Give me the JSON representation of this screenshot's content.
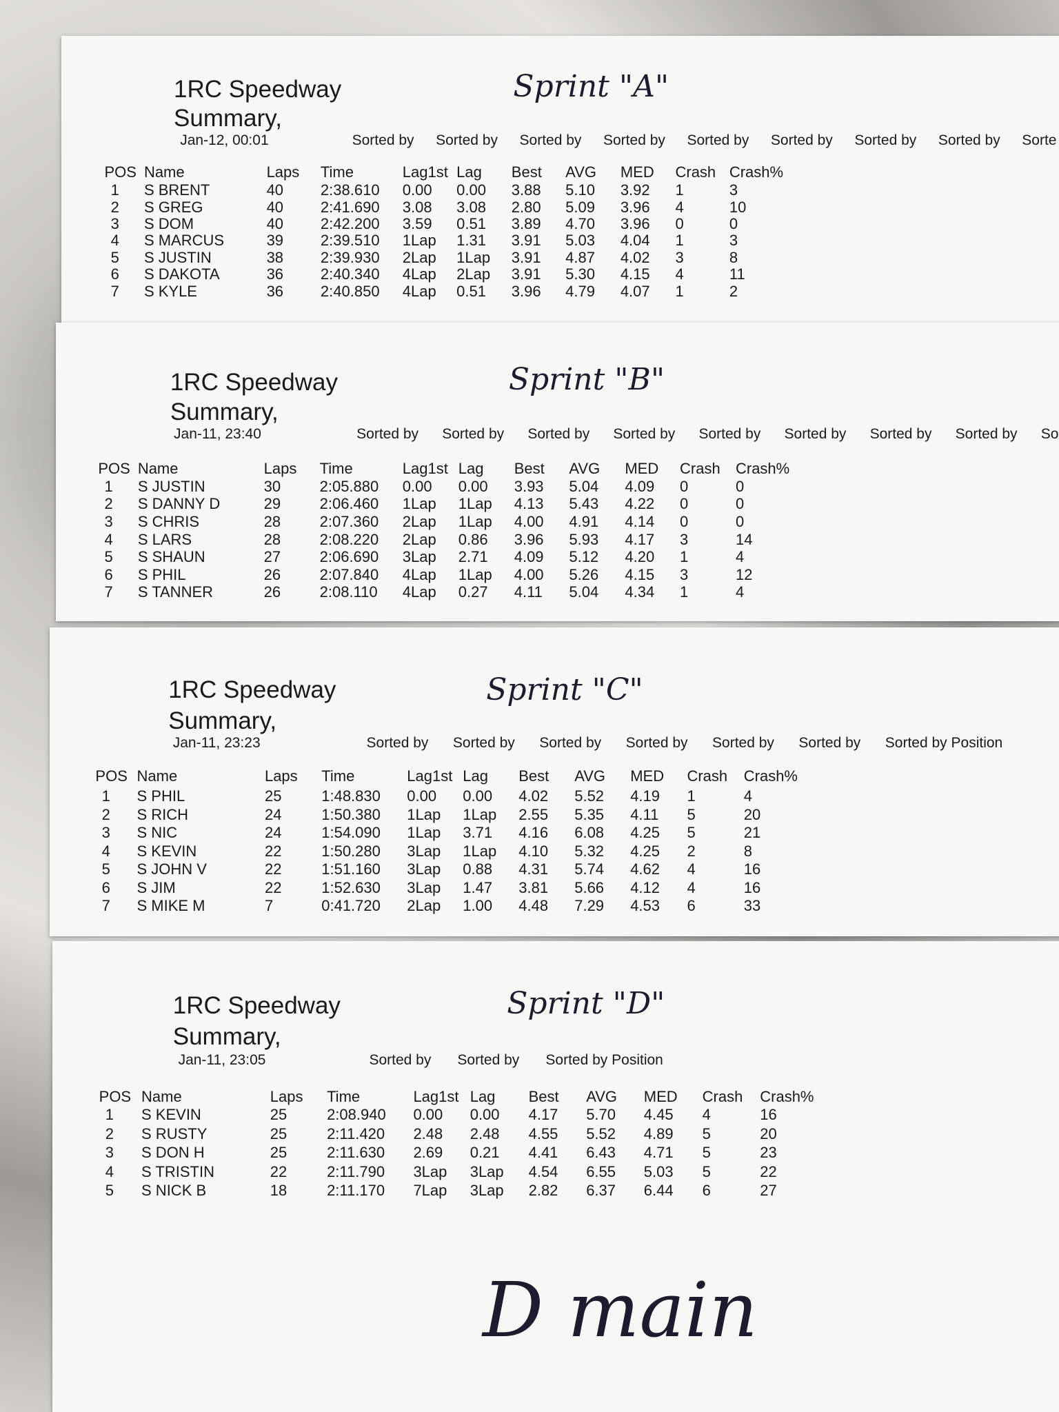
{
  "sheets": [
    {
      "title": "1RC Speedway",
      "subtitle": "Summary,",
      "date": "Jan-12, 00:01",
      "note": "Sprint \"A\"",
      "sorted": [
        "Sorted by",
        "Sorted by",
        "Sorted by",
        "Sorted by",
        "Sorted by",
        "Sorted by",
        "Sorted by",
        "Sorted by",
        "Sorte"
      ],
      "columns": [
        "POS",
        "Name",
        "Laps",
        "Time",
        "Lag1st",
        "Lag",
        "Best",
        "AVG",
        "MED",
        "Crash",
        "Crash%"
      ],
      "rows": [
        [
          "1",
          "S BRENT",
          "40",
          "2:38.610",
          "0.00",
          "0.00",
          "3.88",
          "5.10",
          "3.92",
          "1",
          "3"
        ],
        [
          "2",
          "S GREG",
          "40",
          "2:41.690",
          "3.08",
          "3.08",
          "2.80",
          "5.09",
          "3.96",
          "4",
          "10"
        ],
        [
          "3",
          "S DOM",
          "40",
          "2:42.200",
          "3.59",
          "0.51",
          "3.89",
          "4.70",
          "3.96",
          "0",
          "0"
        ],
        [
          "4",
          "S MARCUS",
          "39",
          "2:39.510",
          "1Lap",
          "1.31",
          "3.91",
          "5.03",
          "4.04",
          "1",
          "3"
        ],
        [
          "5",
          "S JUSTIN",
          "38",
          "2:39.930",
          "2Lap",
          "1Lap",
          "3.91",
          "4.87",
          "4.02",
          "3",
          "8"
        ],
        [
          "6",
          "S DAKOTA",
          "36",
          "2:40.340",
          "4Lap",
          "2Lap",
          "3.91",
          "5.30",
          "4.15",
          "4",
          "11"
        ],
        [
          "7",
          "S KYLE",
          "36",
          "2:40.850",
          "4Lap",
          "0.51",
          "3.96",
          "4.79",
          "4.07",
          "1",
          "2"
        ]
      ]
    },
    {
      "title": "1RC Speedway",
      "subtitle": "Summary,",
      "date": "Jan-11, 23:40",
      "note": "Sprint \"B\"",
      "sorted": [
        "Sorted by",
        "Sorted by",
        "Sorted by",
        "Sorted by",
        "Sorted by",
        "Sorted by",
        "Sorted by",
        "Sorted by",
        "Sor"
      ],
      "columns": [
        "POS",
        "Name",
        "Laps",
        "Time",
        "Lag1st",
        "Lag",
        "Best",
        "AVG",
        "MED",
        "Crash",
        "Crash%"
      ],
      "rows": [
        [
          "1",
          "S JUSTIN",
          "30",
          "2:05.880",
          "0.00",
          "0.00",
          "3.93",
          "5.04",
          "4.09",
          "0",
          "0"
        ],
        [
          "2",
          "S DANNY D",
          "29",
          "2:06.460",
          "1Lap",
          "1Lap",
          "4.13",
          "5.43",
          "4.22",
          "0",
          "0"
        ],
        [
          "3",
          "S CHRIS",
          "28",
          "2:07.360",
          "2Lap",
          "1Lap",
          "4.00",
          "4.91",
          "4.14",
          "0",
          "0"
        ],
        [
          "4",
          "S LARS",
          "28",
          "2:08.220",
          "2Lap",
          "0.86",
          "3.96",
          "5.93",
          "4.17",
          "3",
          "14"
        ],
        [
          "5",
          "S SHAUN",
          "27",
          "2:06.690",
          "3Lap",
          "2.71",
          "4.09",
          "5.12",
          "4.20",
          "1",
          "4"
        ],
        [
          "6",
          "S PHIL",
          "26",
          "2:07.840",
          "4Lap",
          "1Lap",
          "4.00",
          "5.26",
          "4.15",
          "3",
          "12"
        ],
        [
          "7",
          "S TANNER",
          "26",
          "2:08.110",
          "4Lap",
          "0.27",
          "4.11",
          "5.04",
          "4.34",
          "1",
          "4"
        ]
      ]
    },
    {
      "title": "1RC Speedway",
      "subtitle": "Summary,",
      "date": "Jan-11, 23:23",
      "note": "Sprint \"C\"",
      "sorted": [
        "Sorted by",
        "Sorted by",
        "Sorted by",
        "Sorted by",
        "Sorted by",
        "Sorted by",
        "Sorted by Position"
      ],
      "columns": [
        "POS",
        "Name",
        "Laps",
        "Time",
        "Lag1st",
        "Lag",
        "Best",
        "AVG",
        "MED",
        "Crash",
        "Crash%"
      ],
      "rows": [
        [
          "1",
          "S PHIL",
          "25",
          "1:48.830",
          "0.00",
          "0.00",
          "4.02",
          "5.52",
          "4.19",
          "1",
          "4"
        ],
        [
          "2",
          "S RICH",
          "24",
          "1:50.380",
          "1Lap",
          "1Lap",
          "2.55",
          "5.35",
          "4.11",
          "5",
          "20"
        ],
        [
          "3",
          "S NIC",
          "24",
          "1:54.090",
          "1Lap",
          "3.71",
          "4.16",
          "6.08",
          "4.25",
          "5",
          "21"
        ],
        [
          "4",
          "S KEVIN",
          "22",
          "1:50.280",
          "3Lap",
          "1Lap",
          "4.10",
          "5.32",
          "4.25",
          "2",
          "8"
        ],
        [
          "5",
          "S JOHN V",
          "22",
          "1:51.160",
          "3Lap",
          "0.88",
          "4.31",
          "5.74",
          "4.62",
          "4",
          "16"
        ],
        [
          "6",
          "S JIM",
          "22",
          "1:52.630",
          "3Lap",
          "1.47",
          "3.81",
          "5.66",
          "4.12",
          "4",
          "16"
        ],
        [
          "7",
          "S MIKE M",
          "7",
          "0:41.720",
          "2Lap",
          "1.00",
          "4.48",
          "7.29",
          "4.53",
          "6",
          "33"
        ]
      ]
    },
    {
      "title": "1RC Speedway",
      "subtitle": "Summary,",
      "date": "Jan-11, 23:05",
      "note": "Sprint \"D\"",
      "sorted": [
        "Sorted by",
        "Sorted by",
        "Sorted by Position"
      ],
      "columns": [
        "POS",
        "Name",
        "Laps",
        "Time",
        "Lag1st",
        "Lag",
        "Best",
        "AVG",
        "MED",
        "Crash",
        "Crash%"
      ],
      "rows": [
        [
          "1",
          "S KEVIN",
          "25",
          "2:08.940",
          "0.00",
          "0.00",
          "4.17",
          "5.70",
          "4.45",
          "4",
          "16"
        ],
        [
          "2",
          "S RUSTY",
          "25",
          "2:11.420",
          "2.48",
          "2.48",
          "4.55",
          "5.52",
          "4.89",
          "5",
          "20"
        ],
        [
          "3",
          "S DON H",
          "25",
          "2:11.630",
          "2.69",
          "0.21",
          "4.41",
          "6.43",
          "4.71",
          "5",
          "23"
        ],
        [
          "4",
          "S TRISTIN",
          "22",
          "2:11.790",
          "3Lap",
          "3Lap",
          "4.54",
          "6.55",
          "5.03",
          "5",
          "22"
        ],
        [
          "5",
          "S NICK B",
          "18",
          "2:11.170",
          "7Lap",
          "3Lap",
          "2.82",
          "6.37",
          "6.44",
          "6",
          "27"
        ]
      ]
    }
  ],
  "footer_note": "D main"
}
